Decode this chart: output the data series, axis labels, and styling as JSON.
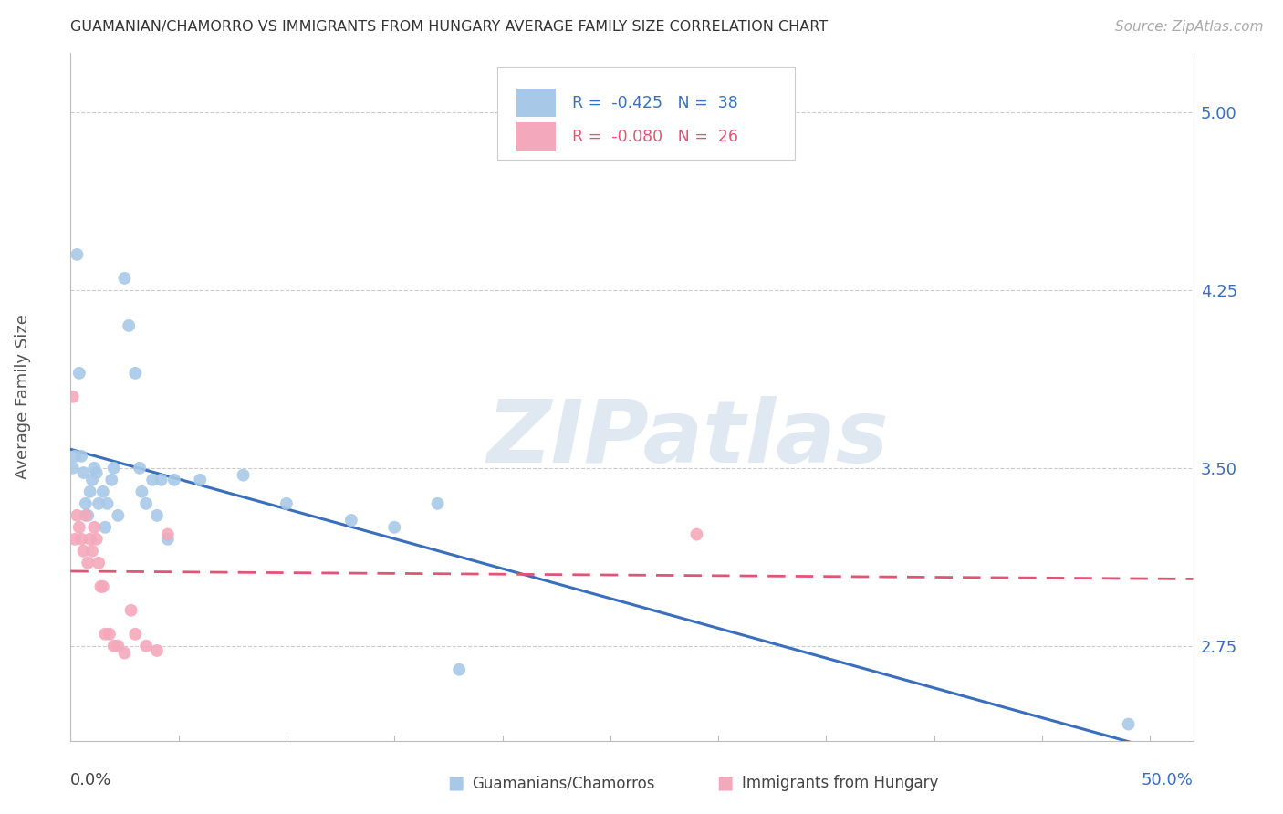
{
  "title": "GUAMANIAN/CHAMORRO VS IMMIGRANTS FROM HUNGARY AVERAGE FAMILY SIZE CORRELATION CHART",
  "source": "Source: ZipAtlas.com",
  "ylabel": "Average Family Size",
  "yticks": [
    2.75,
    3.5,
    4.25,
    5.0
  ],
  "xlim": [
    0.0,
    0.52
  ],
  "ylim": [
    2.35,
    5.25
  ],
  "watermark": "ZIPatlas",
  "legend_blue_r_val": "-0.425",
  "legend_blue_n_val": "38",
  "legend_pink_r_val": "-0.080",
  "legend_pink_n_val": "26",
  "legend_label_blue": "Guamanians/Chamorros",
  "legend_label_pink": "Immigrants from Hungary",
  "blue_color": "#a8c8e8",
  "pink_color": "#f4a8bc",
  "blue_line_color": "#3a6fbd",
  "pink_line_color": "#e05575",
  "blue_x": [
    0.001,
    0.002,
    0.003,
    0.004,
    0.005,
    0.006,
    0.007,
    0.008,
    0.009,
    0.01,
    0.011,
    0.012,
    0.013,
    0.015,
    0.016,
    0.017,
    0.019,
    0.02,
    0.022,
    0.025,
    0.027,
    0.03,
    0.032,
    0.033,
    0.035,
    0.038,
    0.04,
    0.042,
    0.045,
    0.048,
    0.06,
    0.08,
    0.1,
    0.13,
    0.15,
    0.17,
    0.18,
    0.49
  ],
  "blue_y": [
    3.5,
    3.55,
    4.4,
    3.9,
    3.55,
    3.48,
    3.35,
    3.3,
    3.4,
    3.45,
    3.5,
    3.48,
    3.35,
    3.4,
    3.25,
    3.35,
    3.45,
    3.5,
    3.3,
    4.3,
    4.1,
    3.9,
    3.5,
    3.4,
    3.35,
    3.45,
    3.3,
    3.45,
    3.2,
    3.45,
    3.45,
    3.47,
    3.35,
    3.28,
    3.25,
    3.35,
    2.65,
    2.42
  ],
  "pink_x": [
    0.001,
    0.002,
    0.003,
    0.004,
    0.005,
    0.006,
    0.007,
    0.008,
    0.009,
    0.01,
    0.011,
    0.012,
    0.013,
    0.014,
    0.015,
    0.016,
    0.018,
    0.02,
    0.022,
    0.025,
    0.028,
    0.03,
    0.035,
    0.04,
    0.045,
    0.29
  ],
  "pink_y": [
    3.8,
    3.2,
    3.3,
    3.25,
    3.2,
    3.15,
    3.3,
    3.1,
    3.2,
    3.15,
    3.25,
    3.2,
    3.1,
    3.0,
    3.0,
    2.8,
    2.8,
    2.75,
    2.75,
    2.72,
    2.9,
    2.8,
    2.75,
    2.73,
    3.22,
    3.22
  ]
}
